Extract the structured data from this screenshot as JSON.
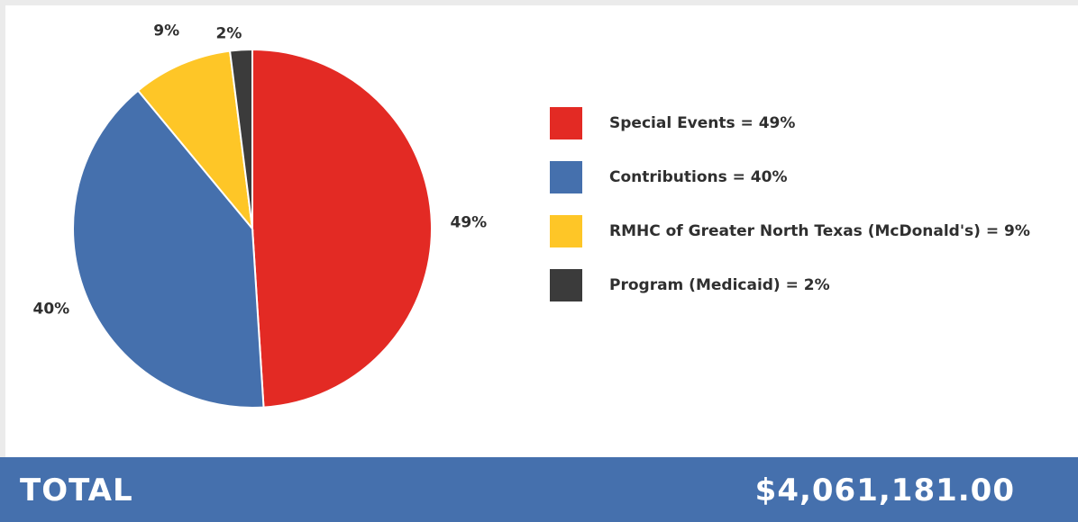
{
  "chart_data": {
    "type": "pie",
    "slices": [
      {
        "label": "Special Events",
        "value": 49,
        "display": "49%",
        "color": "#e32a24"
      },
      {
        "label": "Contributions",
        "value": 40,
        "display": "40%",
        "color": "#4570ad"
      },
      {
        "label": "RMHC of Greater North Texas (McDonald's)",
        "value": 9,
        "display": "9%",
        "color": "#fec627"
      },
      {
        "label": "Program (Medicaid)",
        "value": 2,
        "display": "2%",
        "color": "#3b3b3b"
      }
    ],
    "legend_placement": "right"
  },
  "legend": [
    {
      "text": "Special Events = 49%",
      "color": "#e32a24"
    },
    {
      "text": "Contributions = 40%",
      "color": "#4570ad"
    },
    {
      "text": "RMHC of Greater North Texas (McDonald's) = 9%",
      "color": "#fec627"
    },
    {
      "text": "Program (Medicaid) = 2%",
      "color": "#3b3b3b"
    }
  ],
  "total": {
    "label": "TOTAL",
    "value": "$4,061,181.00",
    "bar_color": "#4570ad"
  }
}
